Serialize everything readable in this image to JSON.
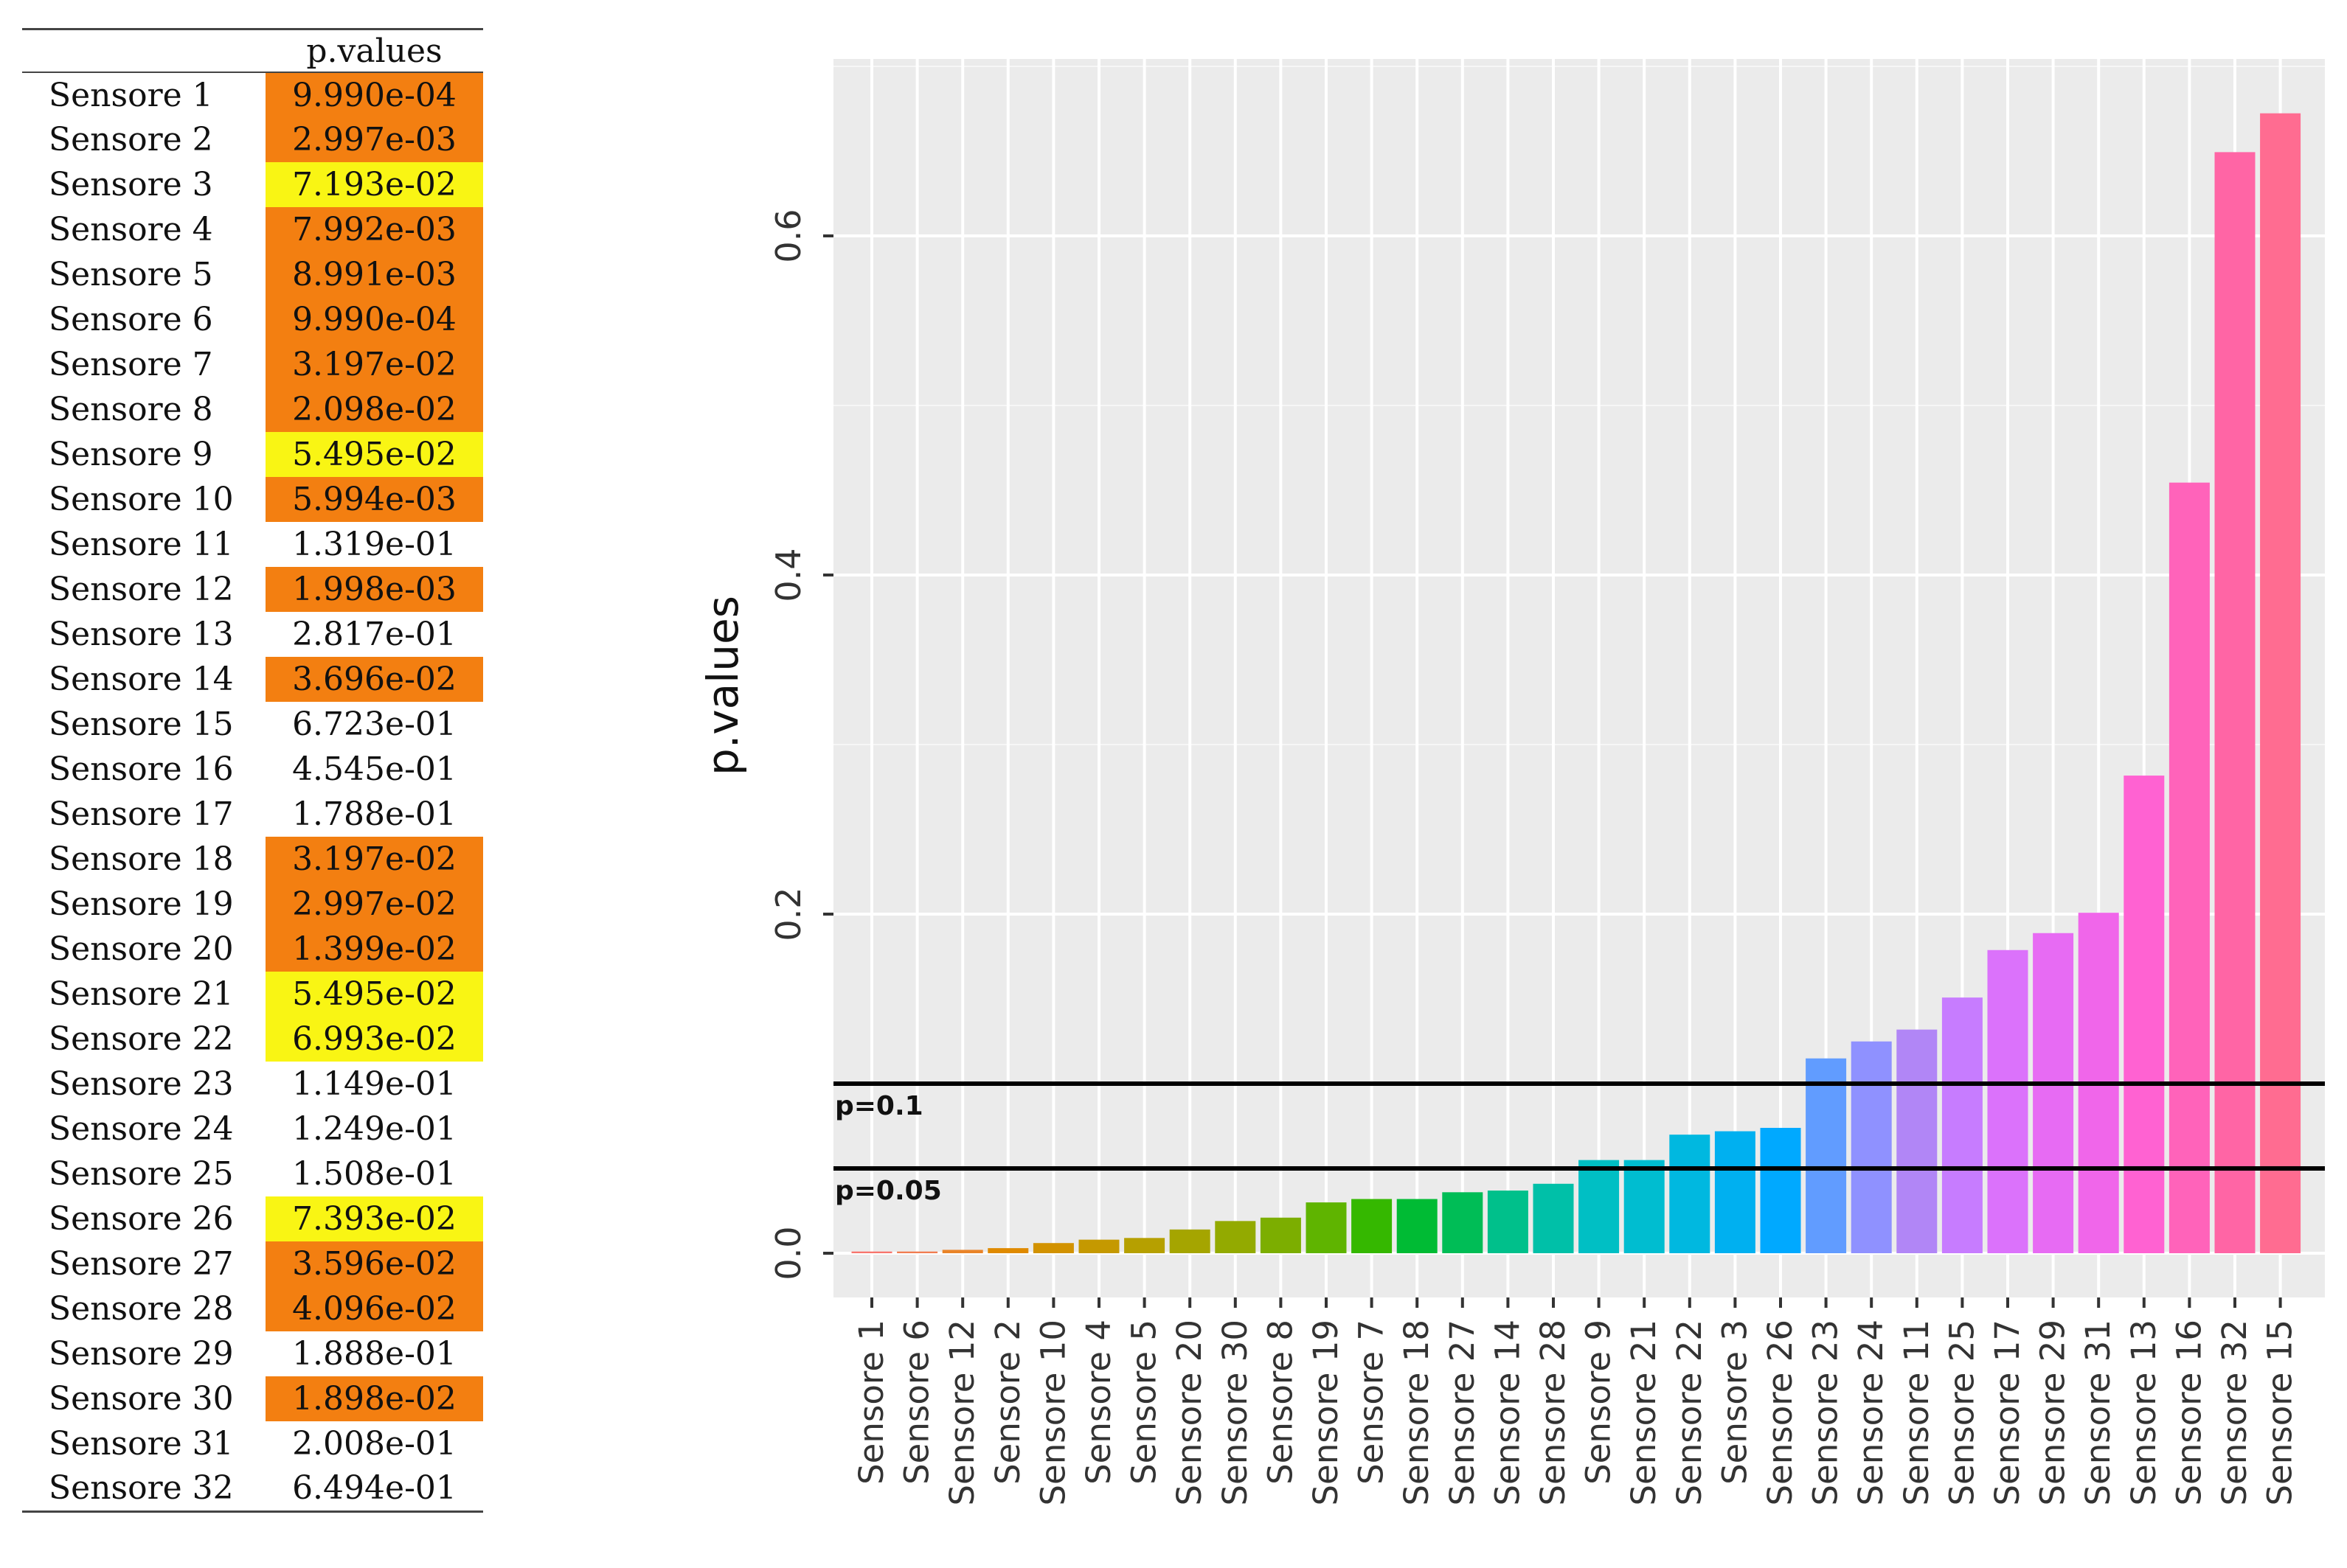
{
  "table": {
    "header_label": "",
    "header_value": "p.values",
    "colors": {
      "significant": "#f37f11",
      "marginal": "#f9f514",
      "none": "#ffffff"
    },
    "rows": [
      {
        "label": "Sensore 1",
        "value": "9.990e-04",
        "highlight": "significant"
      },
      {
        "label": "Sensore 2",
        "value": "2.997e-03",
        "highlight": "significant"
      },
      {
        "label": "Sensore 3",
        "value": "7.193e-02",
        "highlight": "marginal"
      },
      {
        "label": "Sensore 4",
        "value": "7.992e-03",
        "highlight": "significant"
      },
      {
        "label": "Sensore 5",
        "value": "8.991e-03",
        "highlight": "significant"
      },
      {
        "label": "Sensore 6",
        "value": "9.990e-04",
        "highlight": "significant"
      },
      {
        "label": "Sensore 7",
        "value": "3.197e-02",
        "highlight": "significant"
      },
      {
        "label": "Sensore 8",
        "value": "2.098e-02",
        "highlight": "significant"
      },
      {
        "label": "Sensore 9",
        "value": "5.495e-02",
        "highlight": "marginal"
      },
      {
        "label": "Sensore 10",
        "value": "5.994e-03",
        "highlight": "significant"
      },
      {
        "label": "Sensore 11",
        "value": "1.319e-01",
        "highlight": "none"
      },
      {
        "label": "Sensore 12",
        "value": "1.998e-03",
        "highlight": "significant"
      },
      {
        "label": "Sensore 13",
        "value": "2.817e-01",
        "highlight": "none"
      },
      {
        "label": "Sensore 14",
        "value": "3.696e-02",
        "highlight": "significant"
      },
      {
        "label": "Sensore 15",
        "value": "6.723e-01",
        "highlight": "none"
      },
      {
        "label": "Sensore 16",
        "value": "4.545e-01",
        "highlight": "none"
      },
      {
        "label": "Sensore 17",
        "value": "1.788e-01",
        "highlight": "none"
      },
      {
        "label": "Sensore 18",
        "value": "3.197e-02",
        "highlight": "significant"
      },
      {
        "label": "Sensore 19",
        "value": "2.997e-02",
        "highlight": "significant"
      },
      {
        "label": "Sensore 20",
        "value": "1.399e-02",
        "highlight": "significant"
      },
      {
        "label": "Sensore 21",
        "value": "5.495e-02",
        "highlight": "marginal"
      },
      {
        "label": "Sensore 22",
        "value": "6.993e-02",
        "highlight": "marginal"
      },
      {
        "label": "Sensore 23",
        "value": "1.149e-01",
        "highlight": "none"
      },
      {
        "label": "Sensore 24",
        "value": "1.249e-01",
        "highlight": "none"
      },
      {
        "label": "Sensore 25",
        "value": "1.508e-01",
        "highlight": "none"
      },
      {
        "label": "Sensore 26",
        "value": "7.393e-02",
        "highlight": "marginal"
      },
      {
        "label": "Sensore 27",
        "value": "3.596e-02",
        "highlight": "significant"
      },
      {
        "label": "Sensore 28",
        "value": "4.096e-02",
        "highlight": "significant"
      },
      {
        "label": "Sensore 29",
        "value": "1.888e-01",
        "highlight": "none"
      },
      {
        "label": "Sensore 30",
        "value": "1.898e-02",
        "highlight": "significant"
      },
      {
        "label": "Sensore 31",
        "value": "2.008e-01",
        "highlight": "none"
      },
      {
        "label": "Sensore 32",
        "value": "6.494e-01",
        "highlight": "none"
      }
    ]
  },
  "chart_data": {
    "type": "bar",
    "title": "",
    "xlabel": "",
    "ylabel": "p.values",
    "ylim": [
      0,
      0.71
    ],
    "yticks": [
      0.0,
      0.2,
      0.4,
      0.6
    ],
    "ytick_labels": [
      "0.0",
      "0.2",
      "0.4",
      "0.6"
    ],
    "grid": true,
    "panel_background": "#ebebeb",
    "categories": [
      "Sensore 1",
      "Sensore 6",
      "Sensore 12",
      "Sensore 2",
      "Sensore 10",
      "Sensore 4",
      "Sensore 5",
      "Sensore 20",
      "Sensore 30",
      "Sensore 8",
      "Sensore 19",
      "Sensore 7",
      "Sensore 18",
      "Sensore 27",
      "Sensore 14",
      "Sensore 28",
      "Sensore 9",
      "Sensore 21",
      "Sensore 22",
      "Sensore 3",
      "Sensore 26",
      "Sensore 23",
      "Sensore 24",
      "Sensore 11",
      "Sensore 25",
      "Sensore 17",
      "Sensore 29",
      "Sensore 31",
      "Sensore 13",
      "Sensore 16",
      "Sensore 32",
      "Sensore 15"
    ],
    "values": [
      0.000999,
      0.000999,
      0.001998,
      0.002997,
      0.005994,
      0.007992,
      0.008991,
      0.01399,
      0.01898,
      0.02098,
      0.02997,
      0.03197,
      0.03197,
      0.03596,
      0.03696,
      0.04096,
      0.05495,
      0.05495,
      0.06993,
      0.07193,
      0.07393,
      0.1149,
      0.1249,
      0.1319,
      0.1508,
      0.1788,
      0.1888,
      0.2008,
      0.2817,
      0.4545,
      0.6494,
      0.6723
    ],
    "bar_colors": [
      "#F8766D",
      "#F17D51",
      "#E98429",
      "#DF8A00",
      "#D29200",
      "#C59900",
      "#B6A000",
      "#A5A500",
      "#93AA00",
      "#7CAE00",
      "#5FB400",
      "#35B800",
      "#00BB34",
      "#00BD56",
      "#00C08B",
      "#00C0A8",
      "#00BFC4",
      "#00BDD0",
      "#00B8E0",
      "#00B0F0",
      "#00A9FF",
      "#619CFF",
      "#8F91FF",
      "#B186F6",
      "#C77CFF",
      "#DB72FB",
      "#E76BF3",
      "#F066EA",
      "#FF62D2",
      "#FF63BA",
      "#FF65A5",
      "#FF6C91"
    ],
    "hlines": [
      {
        "y": 0.1,
        "label": "p=0.1"
      },
      {
        "y": 0.05,
        "label": "p=0.05"
      }
    ]
  }
}
